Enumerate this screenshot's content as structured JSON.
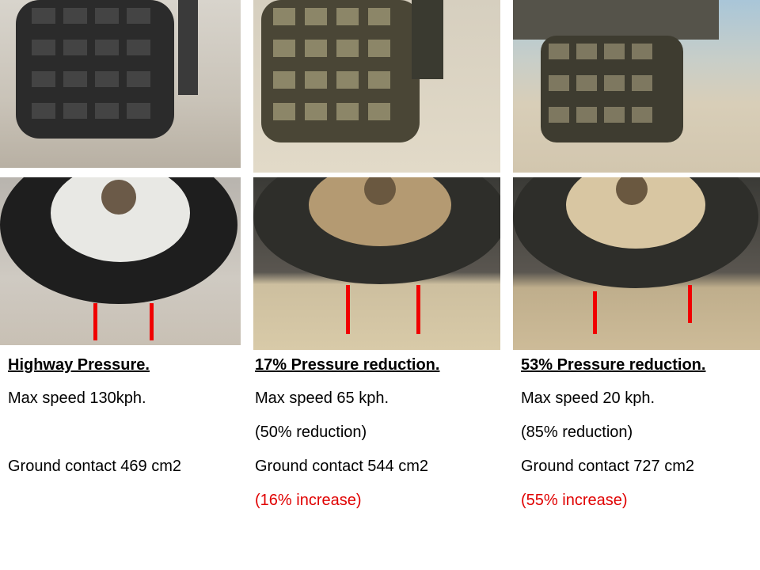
{
  "colors": {
    "marker": "#f00000",
    "increase_text": "#e00000"
  },
  "columns": [
    {
      "heading": "Highway Pressure.",
      "speed": "Max speed 130kph.",
      "speed_reduction": "",
      "contact": "Ground contact 469 cm2",
      "contact_increase": ""
    },
    {
      "heading": "17% Pressure reduction.",
      "speed": "Max speed 65 kph.",
      "speed_reduction": "(50% reduction)",
      "contact": "Ground contact 544 cm2",
      "contact_increase": "(16% increase)"
    },
    {
      "heading": "53% Pressure reduction.",
      "speed": "Max speed 20 kph.",
      "speed_reduction": "(85% reduction)",
      "contact": "Ground contact 727 cm2",
      "contact_increase": "(55% increase)"
    }
  ]
}
